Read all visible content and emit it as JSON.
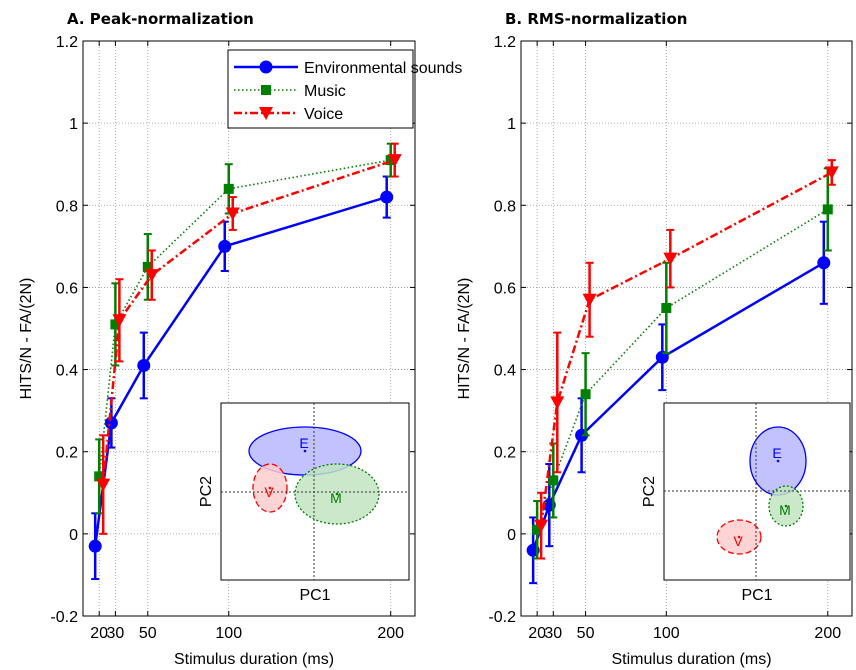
{
  "chart_data": [
    {
      "type": "line",
      "title": "A. Peak-normalization",
      "xlabel": "Stimulus duration (ms)",
      "ylabel": "HITS/N - FA/(2N)",
      "xlim": [
        10,
        215
      ],
      "ylim": [
        -0.2,
        1.2
      ],
      "x": [
        20,
        30,
        50,
        100,
        200
      ],
      "xticks": [
        "20",
        "30",
        "50",
        "100",
        "200"
      ],
      "yticks": [
        "-0.2",
        "0",
        "0.2",
        "0.4",
        "0.6",
        "0.8",
        "1",
        "1.2"
      ],
      "grid": true,
      "legend": "top",
      "series": [
        {
          "name": "Environmental sounds",
          "color": "#0000ff",
          "marker": "circle",
          "style": "solid",
          "values": [
            -0.03,
            0.27,
            0.41,
            0.7,
            0.82
          ],
          "err": [
            0.08,
            0.06,
            0.08,
            0.06,
            0.05
          ]
        },
        {
          "name": "Music",
          "color": "#008000",
          "marker": "square",
          "style": "dotted",
          "values": [
            0.14,
            0.51,
            0.65,
            0.84,
            0.91
          ],
          "err": [
            0.09,
            0.1,
            0.08,
            0.06,
            0.04
          ]
        },
        {
          "name": "Voice",
          "color": "#ff0000",
          "marker": "triangle-down",
          "style": "dashdot",
          "values": [
            0.12,
            0.52,
            0.63,
            0.78,
            0.91
          ],
          "err": [
            0.12,
            0.1,
            0.06,
            0.04,
            0.04
          ]
        }
      ],
      "inset": {
        "xlabel": "PC1",
        "ylabel": "PC2",
        "ellipses": [
          {
            "label": "E",
            "color": "#0000ff"
          },
          {
            "label": "V",
            "color": "#ff0000"
          },
          {
            "label": "M",
            "color": "#008000"
          }
        ]
      }
    },
    {
      "type": "line",
      "title": "B. RMS-normalization",
      "xlabel": "Stimulus duration (ms)",
      "ylabel": "HITS/N - FA/(2N)",
      "xlim": [
        10,
        215
      ],
      "ylim": [
        -0.2,
        1.2
      ],
      "x": [
        20,
        30,
        50,
        100,
        200
      ],
      "xticks": [
        "20",
        "30",
        "50",
        "100",
        "200"
      ],
      "yticks": [
        "-0.2",
        "0",
        "0.2",
        "0.4",
        "0.6",
        "0.8",
        "1",
        "1.2"
      ],
      "grid": true,
      "series": [
        {
          "name": "Environmental sounds",
          "color": "#0000ff",
          "marker": "circle",
          "style": "solid",
          "values": [
            -0.04,
            0.07,
            0.24,
            0.43,
            0.66
          ],
          "err": [
            0.08,
            0.1,
            0.09,
            0.08,
            0.1
          ]
        },
        {
          "name": "Music",
          "color": "#008000",
          "marker": "square",
          "style": "dotted",
          "values": [
            0.01,
            0.13,
            0.34,
            0.55,
            0.79
          ],
          "err": [
            0.07,
            0.09,
            0.1,
            0.11,
            0.1
          ]
        },
        {
          "name": "Voice",
          "color": "#ff0000",
          "marker": "triangle-down",
          "style": "dashdot",
          "values": [
            0.02,
            0.32,
            0.57,
            0.67,
            0.88
          ],
          "err": [
            0.08,
            0.17,
            0.09,
            0.07,
            0.03
          ]
        }
      ],
      "inset": {
        "xlabel": "PC1",
        "ylabel": "PC2",
        "ellipses": [
          {
            "label": "E",
            "color": "#0000ff"
          },
          {
            "label": "V",
            "color": "#ff0000"
          },
          {
            "label": "M",
            "color": "#008000"
          }
        ]
      }
    }
  ]
}
